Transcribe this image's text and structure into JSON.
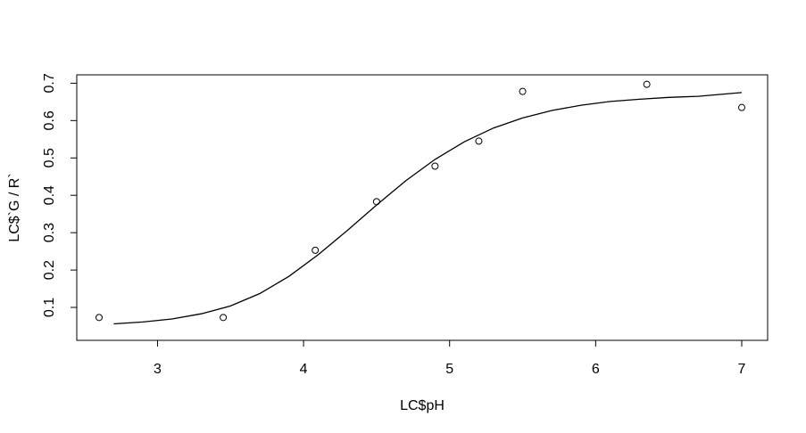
{
  "chart_data": {
    "type": "scatter",
    "title": "",
    "xlabel": "LC$pH",
    "ylabel": "LC$`G / R`",
    "xlim": [
      2.6,
      7.0
    ],
    "ylim": [
      0.05,
      0.72
    ],
    "x_ticks": [
      3,
      4,
      5,
      6,
      7
    ],
    "y_ticks": [
      0.1,
      0.2,
      0.3,
      0.4,
      0.5,
      0.6,
      0.7
    ],
    "x_tick_labels": [
      "3",
      "4",
      "5",
      "6",
      "7"
    ],
    "y_tick_labels": [
      "0.1",
      "0.2",
      "0.3",
      "0.4",
      "0.5",
      "0.6",
      "0.7"
    ],
    "grid": false,
    "series": [
      {
        "type": "scatter",
        "marker": "open-circle",
        "x": [
          2.6,
          3.45,
          4.08,
          4.5,
          4.9,
          5.2,
          5.5,
          6.35,
          7.0
        ],
        "y": [
          0.073,
          0.073,
          0.253,
          0.383,
          0.478,
          0.545,
          0.678,
          0.697,
          0.635
        ]
      },
      {
        "type": "line",
        "x": [
          2.7,
          2.9,
          3.1,
          3.3,
          3.5,
          3.7,
          3.9,
          4.1,
          4.3,
          4.5,
          4.7,
          4.9,
          5.1,
          5.3,
          5.5,
          5.7,
          5.9,
          6.1,
          6.3,
          6.5,
          6.7,
          7.0
        ],
        "y": [
          0.056,
          0.061,
          0.069,
          0.083,
          0.104,
          0.137,
          0.183,
          0.241,
          0.306,
          0.374,
          0.439,
          0.496,
          0.543,
          0.58,
          0.607,
          0.627,
          0.641,
          0.651,
          0.657,
          0.662,
          0.665,
          0.675
        ]
      }
    ]
  }
}
